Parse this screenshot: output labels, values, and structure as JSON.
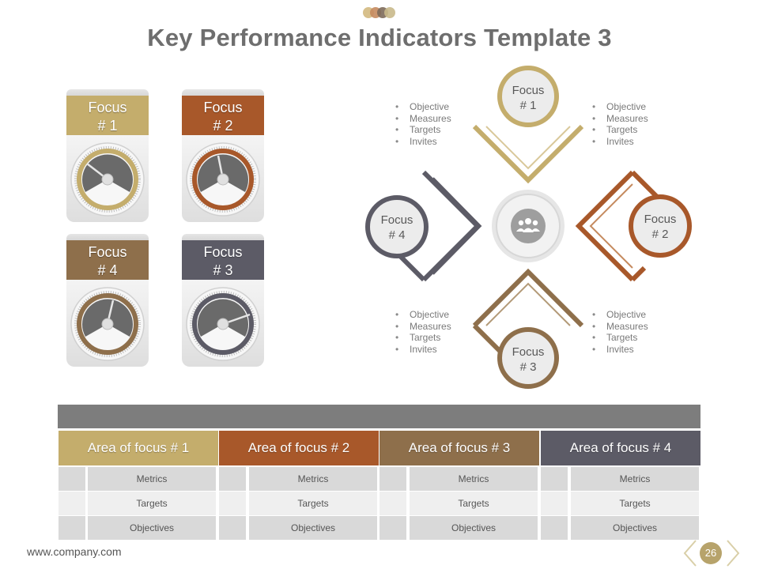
{
  "title": "Key Performance Indicators Template 3",
  "colors": {
    "gold": "#c4ad6c",
    "rust": "#a8582a",
    "brown": "#8e6f4b",
    "slate": "#5c5b66",
    "gray_band": "#7d7d7d"
  },
  "gauges": [
    {
      "label_line1": "Focus",
      "label_line2": "# 1",
      "color": "#c4ad6c"
    },
    {
      "label_line1": "Focus",
      "label_line2": "# 2",
      "color": "#a8582a"
    },
    {
      "label_line1": "Focus",
      "label_line2": "# 4",
      "color": "#8e6f4b"
    },
    {
      "label_line1": "Focus",
      "label_line2": "# 3",
      "color": "#5c5b66"
    }
  ],
  "diagram": {
    "center_icon": "people-group-icon",
    "nodes": [
      {
        "line1": "Focus",
        "line2": "# 1",
        "color": "#c4ad6c"
      },
      {
        "line1": "Focus",
        "line2": "# 2",
        "color": "#a8582a"
      },
      {
        "line1": "Focus",
        "line2": "# 3",
        "color": "#8e6f4b"
      },
      {
        "line1": "Focus",
        "line2": "# 4",
        "color": "#5c5b66"
      }
    ],
    "bullet_lists": [
      [
        "Objective",
        "Measures",
        "Targets",
        "Invites"
      ],
      [
        "Objective",
        "Measures",
        "Targets",
        "Invites"
      ],
      [
        "Objective",
        "Measures",
        "Targets",
        "Invites"
      ],
      [
        "Objective",
        "Measures",
        "Targets",
        "Invites"
      ]
    ]
  },
  "table": {
    "columns": [
      "Area of focus # 1",
      "Area of focus # 2",
      "Area of focus # 3",
      "Area of focus # 4"
    ],
    "rows": [
      "Metrics",
      "Targets",
      "Objectives"
    ]
  },
  "footer": {
    "url": "www.company.com",
    "page": "26"
  }
}
